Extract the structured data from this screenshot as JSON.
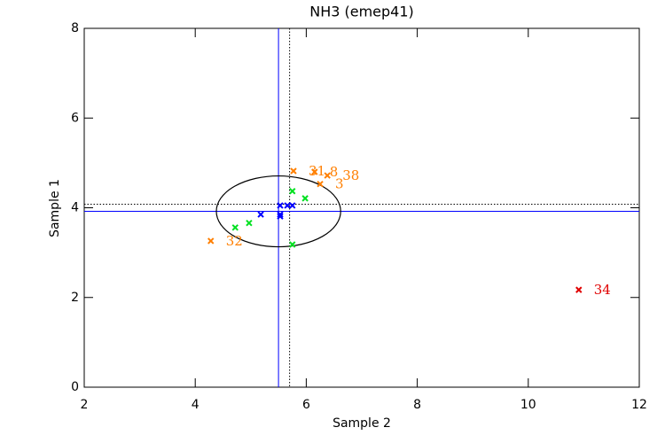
{
  "chart_data": {
    "type": "scatter",
    "title": "NH3 (emep41)",
    "xlabel": "Sample 2",
    "ylabel": "Sample 1",
    "xlim": [
      2,
      12
    ],
    "ylim": [
      0,
      8
    ],
    "xticks": [
      2,
      4,
      6,
      8,
      10,
      12
    ],
    "yticks": [
      0,
      2,
      4,
      6,
      8
    ],
    "series": [
      {
        "color": "#ff7f00",
        "x": [
          4.28,
          5.77,
          6.15,
          6.38,
          6.25
        ],
        "y": [
          3.26,
          4.82,
          4.8,
          4.72,
          4.53
        ],
        "labels": [
          "32",
          "31",
          "8",
          "38",
          "3"
        ]
      },
      {
        "color": "#00e020",
        "x": [
          4.72,
          4.97,
          5.75,
          5.98,
          5.75
        ],
        "y": [
          3.56,
          3.66,
          4.37,
          4.21,
          3.18
        ]
      },
      {
        "color": "#0000ff",
        "x": [
          5.18,
          5.53,
          5.53,
          5.66,
          5.75,
          5.53
        ],
        "y": [
          3.85,
          4.05,
          3.85,
          4.05,
          4.05,
          3.81
        ]
      },
      {
        "color": "#e00000",
        "x": [
          10.91
        ],
        "y": [
          2.17
        ],
        "labels": [
          "34"
        ]
      }
    ],
    "mean_lines": {
      "x": 5.5,
      "y": 3.92,
      "color": "#0000ff"
    },
    "median_lines": {
      "x": 5.7,
      "y": 4.08,
      "color": "#000000"
    },
    "ellipse": {
      "cx": 5.5,
      "cy": 3.92,
      "rx": 1.12,
      "ry": 0.79,
      "color": "#000000"
    }
  }
}
